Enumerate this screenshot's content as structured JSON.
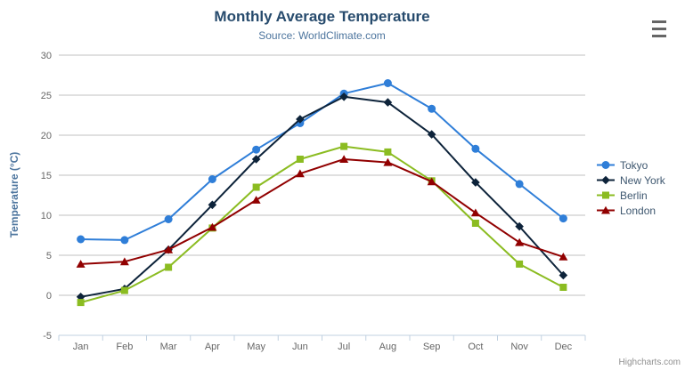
{
  "header": {
    "title": "Monthly Average Temperature",
    "subtitle": "Source: WorldClimate.com"
  },
  "credits": "Highcharts.com",
  "chart_data": {
    "type": "line",
    "title": "Monthly Average Temperature",
    "subtitle": "Source: WorldClimate.com",
    "categories": [
      "Jan",
      "Feb",
      "Mar",
      "Apr",
      "May",
      "Jun",
      "Jul",
      "Aug",
      "Sep",
      "Oct",
      "Nov",
      "Dec"
    ],
    "xlabel": "",
    "ylabel": "Temperature (°C)",
    "ylim": [
      -5,
      30
    ],
    "ytick_step": 5,
    "grid": true,
    "legend_position": "right",
    "series": [
      {
        "name": "Tokyo",
        "color": "#2f7ed8",
        "marker": "circle",
        "values": [
          7.0,
          6.9,
          9.5,
          14.5,
          18.2,
          21.5,
          25.2,
          26.5,
          23.3,
          18.3,
          13.9,
          9.6
        ]
      },
      {
        "name": "New York",
        "color": "#0d233a",
        "marker": "diamond",
        "values": [
          -0.2,
          0.8,
          5.7,
          11.3,
          17.0,
          22.0,
          24.8,
          24.1,
          20.1,
          14.1,
          8.6,
          2.5
        ]
      },
      {
        "name": "Berlin",
        "color": "#8bbc21",
        "marker": "square",
        "values": [
          -0.9,
          0.6,
          3.5,
          8.4,
          13.5,
          17.0,
          18.6,
          17.9,
          14.3,
          9.0,
          3.9,
          1.0
        ]
      },
      {
        "name": "London",
        "color": "#910000",
        "marker": "triangle",
        "values": [
          3.9,
          4.2,
          5.7,
          8.5,
          11.9,
          15.2,
          17.0,
          16.6,
          14.2,
          10.3,
          6.6,
          4.8
        ]
      }
    ],
    "axis_colors": {
      "grid_line": "#C0C0C0",
      "axis_line": "#C0D0E0",
      "tick": "#C0D0E0",
      "label": "#666666"
    }
  }
}
